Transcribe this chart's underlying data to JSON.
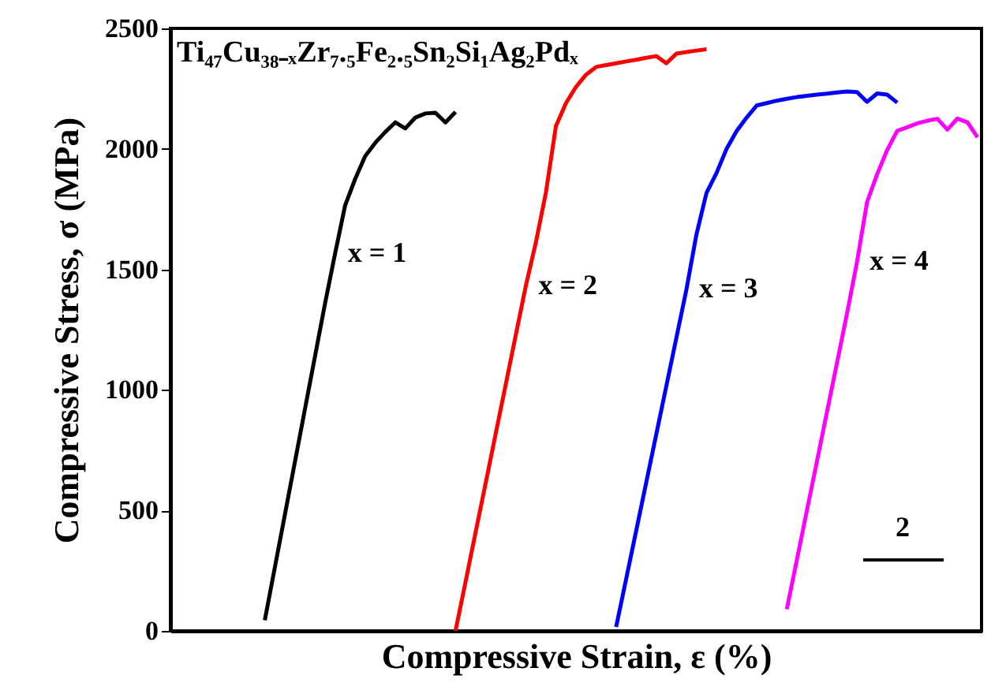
{
  "chart_data": {
    "type": "line",
    "xlabel": "Compressive Strain, ε (%)",
    "ylabel": "Compressive Stress, σ (MPa)",
    "categories": [
      null,
      null,
      null,
      null,
      null,
      null,
      null,
      null,
      null,
      null,
      null,
      null,
      null,
      null,
      null,
      null,
      null,
      null,
      null,
      null,
      null,
      null,
      null,
      null,
      null,
      null,
      null,
      null,
      null,
      null,
      null,
      null,
      null,
      null,
      null,
      null,
      null,
      null,
      null,
      null,
      null,
      null,
      null,
      null,
      null,
      null,
      null,
      null,
      null,
      null,
      null,
      null,
      null,
      null,
      null,
      null,
      null,
      null,
      null,
      null,
      null,
      null,
      null,
      null,
      null,
      null,
      null,
      null,
      null,
      null,
      null,
      null,
      null,
      null,
      null,
      null,
      null,
      null,
      null,
      null,
      null
    ],
    "ylim": [
      0,
      2500
    ],
    "yticks": [
      0,
      500,
      1000,
      1500,
      2000,
      2500
    ],
    "tick_labels": "y",
    "grid": false,
    "marker": "none",
    "line_style": "solid",
    "series": [
      {
        "color": "#000000",
        "values": [
          null,
          null,
          null,
          null,
          null,
          null,
          null,
          null,
          null,
          44,
          263,
          482,
          701,
          920,
          1139,
          1358,
          1565,
          1765,
          1875,
          1970,
          2025,
          2070,
          2110,
          2085,
          2130,
          2147,
          2150,
          2110,
          2153,
          null,
          null,
          null,
          null,
          null,
          null,
          null,
          null,
          null,
          null,
          null,
          null,
          null,
          null,
          null,
          null,
          null,
          null,
          null,
          null,
          null,
          null,
          null,
          null,
          null,
          null,
          null,
          null,
          null,
          null,
          null,
          null,
          null,
          null,
          null,
          null,
          null,
          null,
          null,
          null,
          null,
          null,
          null,
          null,
          null,
          null,
          null,
          null,
          null,
          null,
          null,
          null
        ]
      },
      {
        "color": "#ff0000",
        "values": [
          null,
          null,
          null,
          null,
          null,
          null,
          null,
          null,
          null,
          null,
          null,
          null,
          null,
          null,
          null,
          null,
          null,
          null,
          null,
          null,
          null,
          null,
          null,
          null,
          null,
          null,
          null,
          null,
          0,
          204,
          409,
          613,
          818,
          1022,
          1227,
          1431,
          1611,
          1818,
          2094,
          2190,
          2257,
          2308,
          2340,
          2348,
          2355,
          2363,
          2370,
          2378,
          2385,
          2355,
          2395,
          2402,
          2408,
          2413,
          null,
          null,
          null,
          null,
          null,
          null,
          null,
          null,
          null,
          null,
          null,
          null,
          null,
          null,
          null,
          null,
          null,
          null,
          null,
          null,
          null,
          null,
          null,
          null,
          null,
          null,
          null
        ]
      },
      {
        "color": "#0000ff",
        "values": [
          null,
          null,
          null,
          null,
          null,
          null,
          null,
          null,
          null,
          null,
          null,
          null,
          null,
          null,
          null,
          null,
          null,
          null,
          null,
          null,
          null,
          null,
          null,
          null,
          null,
          null,
          null,
          null,
          null,
          null,
          null,
          null,
          null,
          null,
          null,
          null,
          null,
          null,
          null,
          null,
          null,
          null,
          null,
          null,
          16,
          216,
          416,
          616,
          816,
          1016,
          1216,
          1416,
          1645,
          1817,
          1900,
          2000,
          2074,
          2130,
          2180,
          2190,
          2200,
          2208,
          2215,
          2220,
          2225,
          2229,
          2234,
          2238,
          2236,
          2195,
          2230,
          2225,
          2192,
          null,
          null,
          null,
          null,
          null,
          null,
          null,
          null
        ]
      },
      {
        "color": "#ff00ff",
        "values": [
          null,
          null,
          null,
          null,
          null,
          null,
          null,
          null,
          null,
          null,
          null,
          null,
          null,
          null,
          null,
          null,
          null,
          null,
          null,
          null,
          null,
          null,
          null,
          null,
          null,
          null,
          null,
          null,
          null,
          null,
          null,
          null,
          null,
          null,
          null,
          null,
          null,
          null,
          null,
          null,
          null,
          null,
          null,
          null,
          null,
          null,
          null,
          null,
          null,
          null,
          null,
          null,
          null,
          null,
          null,
          null,
          null,
          null,
          null,
          null,
          null,
          90,
          294,
          499,
          703,
          908,
          1112,
          1317,
          1532,
          1780,
          1895,
          1995,
          2075,
          2090,
          2106,
          2117,
          2125,
          2080,
          2126,
          2110,
          2048
        ]
      }
    ],
    "annotations": [
      "Ti₄₇Cu₃₈₋ₓZr₇.₅Fe₂.₅Sn₂Si₁Ag₂Pdₓ",
      "x = 1",
      "x = 2",
      "x = 3",
      "x = 4",
      "2"
    ]
  }
}
